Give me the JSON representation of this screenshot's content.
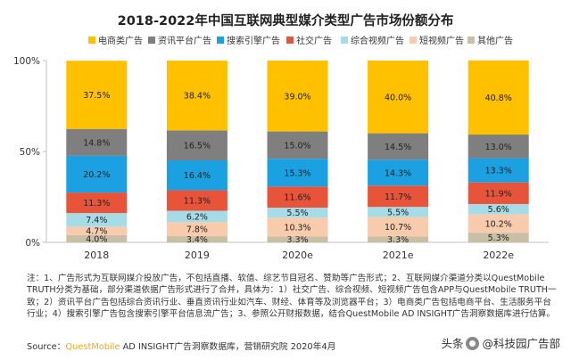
{
  "chart_data": {
    "type": "bar",
    "stacked": true,
    "title": "2018-2022年中国互联网典型媒介类型广告市场份额分布",
    "categories": [
      "2018",
      "2019",
      "2020e",
      "2021e",
      "2022e"
    ],
    "ylim": [
      0,
      100
    ],
    "yticks": [
      "0%",
      "50%",
      "100%"
    ],
    "legend_position": "top",
    "series": [
      {
        "name": "电商类广告",
        "color": "#FFC000",
        "values": [
          37.5,
          38.4,
          39.0,
          40.0,
          40.8
        ],
        "labels": [
          "37.5%",
          "38.4%",
          "39.0%",
          "40.0%",
          "40.8%"
        ]
      },
      {
        "name": "资讯平台广告",
        "color": "#7F7F7F",
        "values": [
          14.8,
          16.5,
          15.0,
          14.5,
          13.0
        ],
        "labels": [
          "14.8%",
          "16.5%",
          "15.0%",
          "14.5%",
          "13.0%"
        ]
      },
      {
        "name": "搜索引擎广告",
        "color": "#1BA1E2",
        "values": [
          20.2,
          16.4,
          15.3,
          14.3,
          13.3
        ],
        "labels": [
          "20.2%",
          "16.4%",
          "15.3%",
          "14.3%",
          "13.3%"
        ]
      },
      {
        "name": "社交广告",
        "color": "#E8543A",
        "values": [
          11.3,
          11.3,
          11.6,
          11.7,
          11.9
        ],
        "labels": [
          "11.3%",
          "11.3%",
          "11.6%",
          "11.7%",
          "11.9%"
        ]
      },
      {
        "name": "综合视频广告",
        "color": "#A6DCE8",
        "values": [
          7.4,
          6.2,
          5.5,
          5.5,
          5.6
        ],
        "labels": [
          "7.4%",
          "6.2%",
          "5.5%",
          "5.5%",
          "5.6%"
        ]
      },
      {
        "name": "短视频广告",
        "color": "#F8CBAD",
        "values": [
          4.7,
          7.8,
          10.3,
          10.7,
          10.2
        ],
        "labels": [
          "4.7%",
          "7.8%",
          "10.3%",
          "10.7%",
          "10.2%"
        ]
      },
      {
        "name": "其他广告",
        "color": "#C9BFA5",
        "values": [
          4.0,
          3.4,
          3.3,
          3.3,
          5.3
        ],
        "labels": [
          "4.0%",
          "3.4%",
          "3.3%",
          "3.3%",
          "5.3%"
        ]
      }
    ]
  },
  "notes": "注：1、广告形式为互联网媒介投放广告，不包括直播、软值、综艺节目冠名、赞助等广告形式；2、互联网媒介渠道分类以QuestMobile TRUTH分类为基础，部分渠道依据广告形式进行了合并，具体为：1）社交广告、综合视频、短视频广告包含APP与QuestMobile TRUTH一致；2）资讯平台广告包括综合资讯行业、垂直资讯行业如汽车、财经、体育等及浏览器平台；3）电商类广告包括电商平台、生活服务平台行业；4）搜索引擎广告包含搜索引擎平台信息流广告；3、参照公开财报数据，结合QuestMobile AD INSIGHT广告洞察数据库进行估算。",
  "source": {
    "prefix": "Source：",
    "brand": "QuestMobile",
    "rest": " AD INSIGHT广告洞察数据库，营销研究院 2020年4月"
  },
  "watermark": {
    "prefix": "头条",
    "text": "@科技园广告部"
  }
}
